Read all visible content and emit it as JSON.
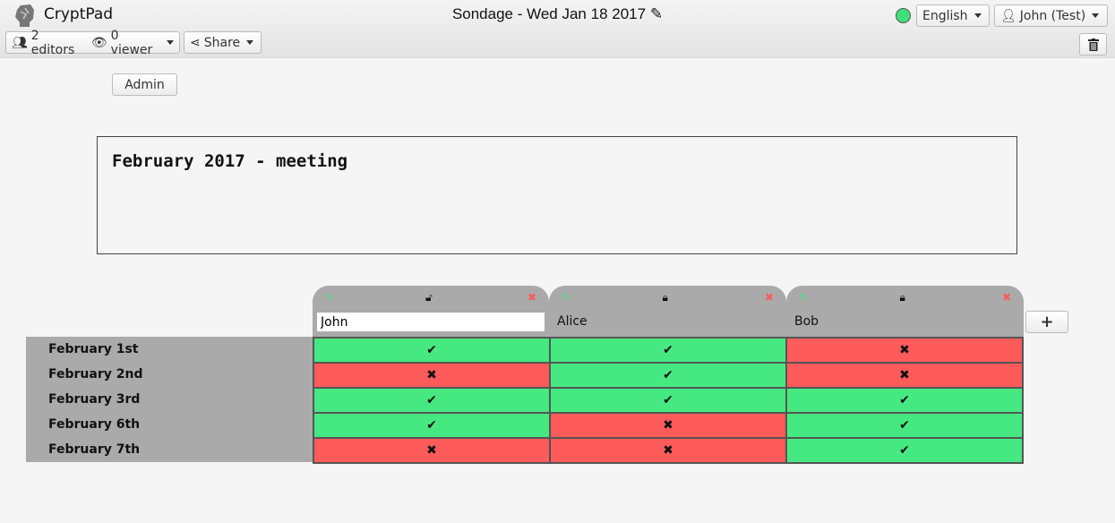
{
  "app": {
    "name": "CryptPad",
    "title": "Sondage - Wed Jan 18 2017"
  },
  "toolbar": {
    "editors": "2 editors",
    "viewers": "0 viewer",
    "share": "Share",
    "language": "English",
    "user": "John (Test)"
  },
  "status_color": "#3ee07a",
  "admin_label": "Admin",
  "description": "February 2017 - meeting",
  "colors": {
    "yes": "#46e981",
    "no": "#ff5b5b"
  },
  "poll": {
    "columns": [
      {
        "name": "John",
        "locked": false,
        "editing": true
      },
      {
        "name": "Alice",
        "locked": true,
        "editing": false
      },
      {
        "name": "Bob",
        "locked": true,
        "editing": false
      }
    ],
    "rows": [
      {
        "label": "February 1st",
        "values": [
          true,
          true,
          false
        ]
      },
      {
        "label": "February 2nd",
        "values": [
          false,
          true,
          false
        ]
      },
      {
        "label": "February 3rd",
        "values": [
          true,
          true,
          true
        ]
      },
      {
        "label": "February 6th",
        "values": [
          true,
          false,
          true
        ]
      },
      {
        "label": "February 7th",
        "values": [
          false,
          false,
          true
        ]
      }
    ]
  },
  "add_label": "+"
}
